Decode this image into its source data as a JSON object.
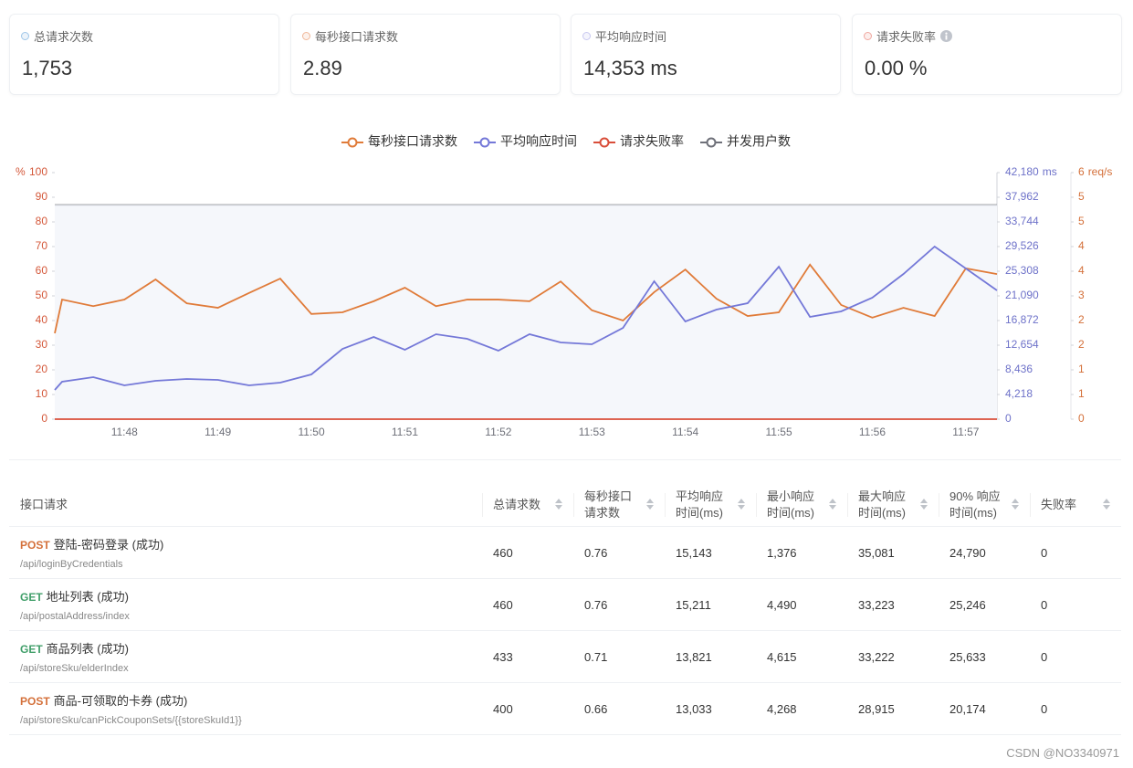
{
  "cards": [
    {
      "label": "总请求次数",
      "value": "1,753",
      "color": "#9ec5e8"
    },
    {
      "label": "每秒接口请求数",
      "value": "2.89",
      "color": "#f0b89a"
    },
    {
      "label": "平均响应时间",
      "value": "14,353 ms",
      "color": "#c8c8f0"
    },
    {
      "label": "请求失败率",
      "value": "0.00 %",
      "color": "#f0a8a0"
    }
  ],
  "chart_data": {
    "type": "line",
    "categories": [
      null,
      null,
      null,
      "11:48",
      null,
      null,
      "11:49",
      null,
      null,
      "11:50",
      null,
      null,
      "11:51",
      null,
      null,
      "11:52",
      null,
      null,
      "11:53",
      null,
      null,
      "11:54",
      null,
      null,
      "11:55",
      null,
      null,
      "11:56",
      null,
      null,
      "11:57",
      null
    ],
    "y_label": "%",
    "ylim": [
      0,
      100
    ],
    "yticks": [
      0,
      10,
      20,
      30,
      40,
      50,
      60,
      70,
      80,
      90,
      100
    ],
    "y2_label": "ms",
    "y2lim": [
      0,
      42180
    ],
    "y2ticks": [
      0,
      {
        "value": 4218,
        "label": "4,218"
      },
      {
        "value": 8436,
        "label": "8,436"
      },
      {
        "value": 12654,
        "label": "12,654"
      },
      {
        "value": 16872,
        "label": "16,872"
      },
      {
        "value": 21090,
        "label": "21,090"
      },
      {
        "value": 25308,
        "label": "25,308"
      },
      {
        "value": 29526,
        "label": "29,526"
      },
      {
        "value": 33744,
        "label": "33,744"
      },
      {
        "value": 37962,
        "label": "37,962"
      },
      {
        "value": 42180,
        "label": "42,180"
      }
    ],
    "y3_label": "req/s",
    "y3lim": [
      0,
      6
    ],
    "y3ticks": [
      0,
      {
        "value": 0.6,
        "label": "1"
      },
      {
        "value": 1.2,
        "label": "1"
      },
      {
        "value": 1.8,
        "label": "2"
      },
      {
        "value": 2.4,
        "label": "2"
      },
      3,
      {
        "value": 3.6,
        "label": "4"
      },
      {
        "value": 4.2,
        "label": "4"
      },
      {
        "value": 4.8,
        "label": "5"
      },
      {
        "value": 5.4,
        "label": "5"
      },
      6
    ],
    "series": [
      {
        "name": "每秒接口请求数",
        "color": "#e07b39",
        "axis": "y3",
        "values": [
          2.09,
          2.91,
          2.75,
          2.91,
          3.4,
          2.82,
          2.71,
          3.07,
          3.42,
          2.56,
          2.6,
          2.87,
          3.2,
          2.75,
          2.91,
          2.91,
          2.87,
          3.35,
          2.65,
          2.4,
          3.09,
          3.64,
          2.93,
          2.51,
          2.6,
          3.76,
          2.78,
          2.47,
          2.71,
          2.51,
          3.67,
          3.53
        ]
      },
      {
        "name": "平均响应时间",
        "color": "#7478d8",
        "axis": "y2",
        "values": [
          5000,
          6405,
          7186,
          5780,
          6561,
          6874,
          6718,
          5780,
          6249,
          7655,
          12029,
          14060,
          11873,
          14529,
          13747,
          11717,
          14529,
          13123,
          12810,
          15622,
          23589,
          16716,
          18747,
          19840,
          26089,
          17497,
          18434,
          20778,
          24839,
          29526,
          25777,
          22027
        ]
      },
      {
        "name": "请求失败率",
        "color": "#d94e3a",
        "axis": "y",
        "values": [
          0,
          0,
          0,
          0,
          0,
          0,
          0,
          0,
          0,
          0,
          0,
          0,
          0,
          0,
          0,
          0,
          0,
          0,
          0,
          0,
          0,
          0,
          0,
          0,
          0,
          0,
          0,
          0,
          0,
          0,
          0,
          0
        ]
      },
      {
        "name": "并发用户数",
        "color": "#6e7079",
        "axis": "y",
        "area": true,
        "values": [
          87,
          87,
          87,
          87,
          87,
          87,
          87,
          87,
          87,
          87,
          87,
          87,
          87,
          87,
          87,
          87,
          87,
          87,
          87,
          87,
          87,
          87,
          87,
          87,
          87,
          87,
          87,
          87,
          87,
          87,
          87,
          87
        ]
      }
    ]
  },
  "table": {
    "headers": [
      "接口请求",
      "总请求数",
      "每秒接口请求数",
      "平均响应时间(ms)",
      "最小响应时间(ms)",
      "最大响应时间(ms)",
      "90% 响应时间(ms)",
      "失败率"
    ],
    "rows": [
      {
        "method": "POST",
        "name": "登陆-密码登录 (成功)",
        "path": "/api/loginByCredentials",
        "cells": [
          "460",
          "0.76",
          "15,143",
          "1,376",
          "35,081",
          "24,790",
          "0"
        ]
      },
      {
        "method": "GET",
        "name": "地址列表 (成功)",
        "path": "/api/postalAddress/index",
        "cells": [
          "460",
          "0.76",
          "15,211",
          "4,490",
          "33,223",
          "25,246",
          "0"
        ]
      },
      {
        "method": "GET",
        "name": "商品列表 (成功)",
        "path": "/api/storeSku/elderIndex",
        "cells": [
          "433",
          "0.71",
          "13,821",
          "4,615",
          "33,222",
          "25,633",
          "0"
        ]
      },
      {
        "method": "POST",
        "name": "商品-可领取的卡券 (成功)",
        "path": "/api/storeSku/canPickCouponSets/{{storeSkuId1}}",
        "cells": [
          "400",
          "0.66",
          "13,033",
          "4,268",
          "28,915",
          "20,174",
          "0"
        ]
      }
    ]
  },
  "watermark": "CSDN @NO3340971"
}
